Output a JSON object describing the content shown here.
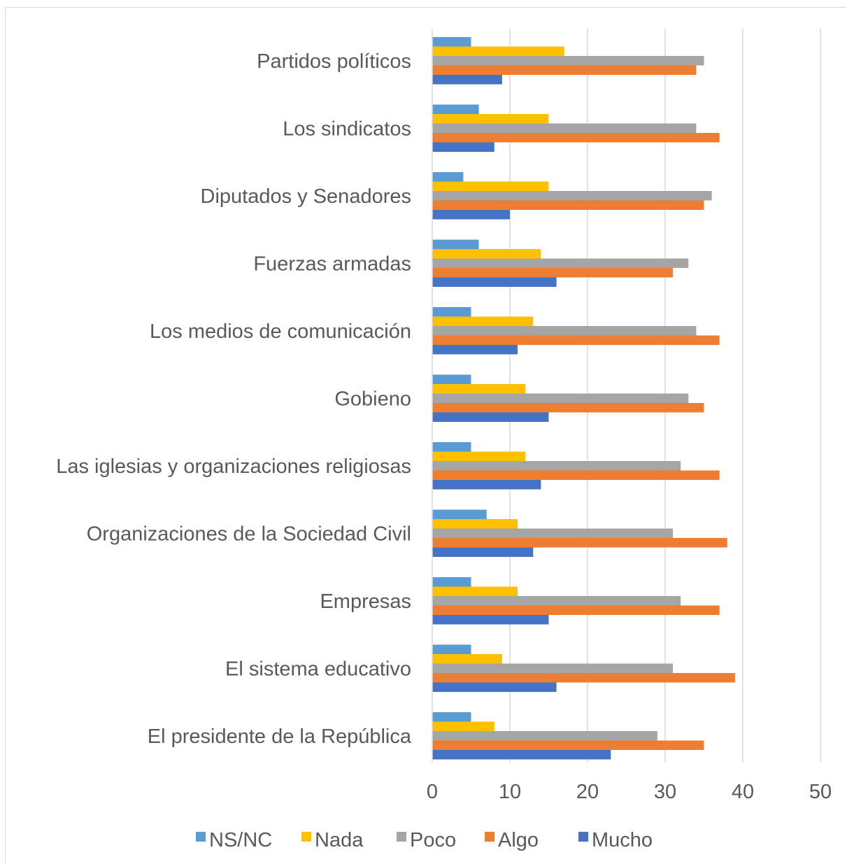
{
  "chart_data": {
    "type": "bar",
    "orientation": "horizontal",
    "categories": [
      "Partidos políticos",
      "Los sindicatos",
      "Diputados y Senadores",
      "Fuerzas armadas",
      "Los medios de comunicación",
      "Gobieno",
      "Las iglesias y organizaciones religiosas",
      "Organizaciones de la Sociedad Civil",
      "Empresas",
      "El sistema educativo",
      "El presidente de la República"
    ],
    "series": [
      {
        "name": "NS/NC",
        "color": "#5b9bd5",
        "values": [
          5,
          6,
          4,
          6,
          5,
          5,
          5,
          7,
          5,
          5,
          5
        ]
      },
      {
        "name": "Nada",
        "color": "#ffc000",
        "values": [
          17,
          15,
          15,
          14,
          13,
          12,
          12,
          11,
          11,
          9,
          8
        ]
      },
      {
        "name": "Poco",
        "color": "#a5a5a5",
        "values": [
          35,
          34,
          36,
          33,
          34,
          33,
          32,
          31,
          32,
          31,
          29
        ]
      },
      {
        "name": "Algo",
        "color": "#ed7d31",
        "values": [
          34,
          37,
          35,
          31,
          37,
          35,
          37,
          38,
          37,
          39,
          35
        ]
      },
      {
        "name": "Mucho",
        "color": "#4472c4",
        "values": [
          9,
          8,
          10,
          16,
          11,
          15,
          14,
          13,
          15,
          16,
          23
        ]
      }
    ],
    "xlim": [
      0,
      50
    ],
    "xticks": [
      "0",
      "10",
      "20",
      "30",
      "40",
      "50"
    ],
    "grid": true,
    "legend_position": "bottom"
  }
}
